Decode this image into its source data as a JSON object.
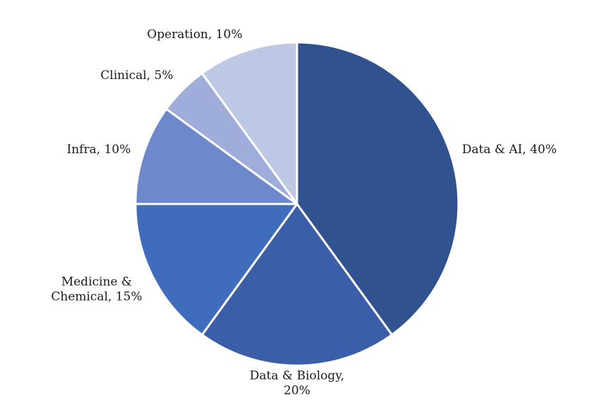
{
  "chart_data": {
    "type": "pie",
    "title": "",
    "start": "12 o'clock",
    "direction": "clockwise",
    "legend": "none (direct labels)",
    "slices": [
      {
        "label": [
          "Data & AI, 40%"
        ],
        "value": 40,
        "color": "#30538f"
      },
      {
        "label": [
          "Data & Biology,",
          "20%"
        ],
        "value": 20,
        "color": "#3a5ea8"
      },
      {
        "label": [
          "Medicine &",
          "Chemical, 15%"
        ],
        "value": 15,
        "color": "#3f6cbb"
      },
      {
        "label": [
          "Infra, 10%"
        ],
        "value": 10,
        "color": "#6e89cb"
      },
      {
        "label": [
          "Clinical, 5%"
        ],
        "value": 5,
        "color": "#9eadda"
      },
      {
        "label": [
          "Operation, 10%"
        ],
        "value": 10,
        "color": "#bdc8e5"
      }
    ],
    "separator_color": "#ffffff"
  }
}
